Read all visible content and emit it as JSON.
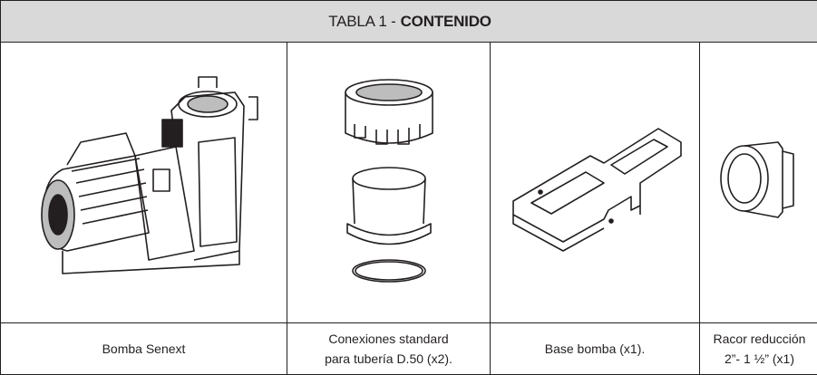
{
  "table": {
    "title": {
      "prefix": "TABLA 1 -",
      "bold": "CONTENIDO"
    },
    "items": [
      {
        "label": [
          "Bomba Senext"
        ]
      },
      {
        "label": [
          "Conexiones standard",
          "para tubería D.50 (x2)."
        ]
      },
      {
        "label": [
          "Base bomba (x1)."
        ]
      },
      {
        "label": [
          "Racor reducción",
          "2”- 1 ½” (x1)"
        ]
      }
    ]
  }
}
